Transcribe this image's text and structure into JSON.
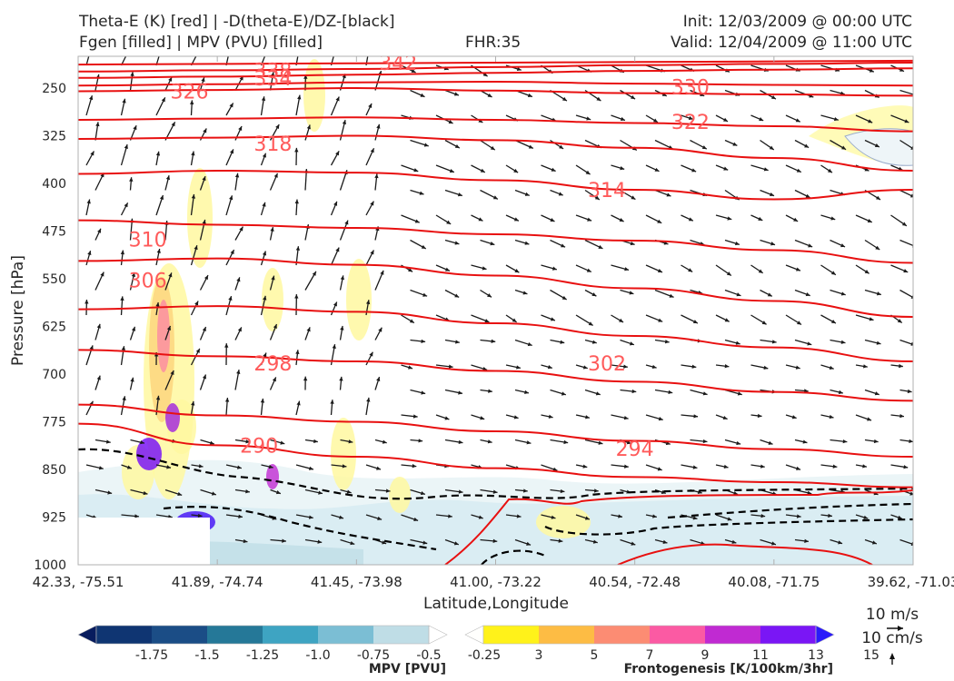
{
  "header": {
    "title_left_1": "Theta-E (K) [red] | -D(theta-E)/DZ-[black]",
    "title_left_2": "Fgen [filled] | MPV (PVU) [filled]",
    "fhr": "FHR:35",
    "init": "Init: 12/03/2009 @ 00:00 UTC",
    "valid": "Valid: 12/04/2009 @ 11:00 UTC"
  },
  "chart_data": {
    "type": "cross-section",
    "ylabel": "Pressure [hPa]",
    "xlabel": "Latitude,Longitude",
    "y_ticks": [
      "250",
      "325",
      "400",
      "475",
      "550",
      "625",
      "700",
      "775",
      "850",
      "925",
      "1000"
    ],
    "x_ticks": [
      "42.33, -75.51",
      "41.89, -74.74",
      "41.45, -73.98",
      "41.00, -73.22",
      "40.54, -72.48",
      "40.08, -71.75",
      "39.62, -71.03"
    ],
    "ylim": [
      1000,
      200
    ],
    "theta_e_contours": [
      {
        "label": "338",
        "p": [
          224,
          222,
          220,
          217,
          214,
          212,
          210
        ]
      },
      {
        "label": "334",
        "p": [
          234,
          232,
          229,
          226,
          223,
          221,
          219
        ]
      },
      {
        "label": "342",
        "p": [
          213,
          212,
          211,
          210,
          209,
          208,
          207
        ]
      },
      {
        "label": "330",
        "p": [
          246,
          244,
          241,
          240,
          243,
          245,
          246
        ]
      },
      {
        "label": "326",
        "p": [
          255,
          253,
          250,
          254,
          258,
          260,
          262
        ]
      },
      {
        "label": "322",
        "p": [
          300,
          298,
          296,
          300,
          305,
          310,
          318
        ]
      },
      {
        "label": "318",
        "p": [
          330,
          328,
          325,
          332,
          344,
          360,
          380
        ]
      },
      {
        "label": "314",
        "p": [
          385,
          380,
          383,
          395,
          410,
          425,
          410
        ]
      },
      {
        "label": "310",
        "p": [
          458,
          465,
          470,
          480,
          490,
          505,
          525
        ]
      },
      {
        "label": "306",
        "p": [
          522,
          518,
          528,
          545,
          565,
          585,
          610
        ]
      },
      {
        "label": "302",
        "p": [
          598,
          593,
          602,
          620,
          640,
          658,
          680
        ]
      },
      {
        "label": "298",
        "p": [
          662,
          672,
          680,
          695,
          712,
          728,
          742
        ]
      },
      {
        "label": "294",
        "p": [
          748,
          765,
          775,
          790,
          805,
          818,
          830
        ]
      },
      {
        "label": "290",
        "p": [
          778,
          812,
          830,
          848,
          862,
          870,
          878
        ]
      }
    ],
    "contour_label_positions": [
      {
        "label": "338",
        "lat_idx": 1.4,
        "p": 222
      },
      {
        "label": "334",
        "lat_idx": 1.4,
        "p": 234
      },
      {
        "label": "342",
        "lat_idx": 2.3,
        "p": 210
      },
      {
        "label": "326",
        "lat_idx": 0.8,
        "p": 255
      },
      {
        "label": "330",
        "lat_idx": 4.4,
        "p": 248
      },
      {
        "label": "322",
        "lat_idx": 4.4,
        "p": 303
      },
      {
        "label": "318",
        "lat_idx": 1.4,
        "p": 337
      },
      {
        "label": "314",
        "lat_idx": 3.8,
        "p": 410
      },
      {
        "label": "310",
        "lat_idx": 0.5,
        "p": 488
      },
      {
        "label": "306",
        "lat_idx": 0.5,
        "p": 552
      },
      {
        "label": "302",
        "lat_idx": 3.8,
        "p": 683
      },
      {
        "label": "298",
        "lat_idx": 1.4,
        "p": 683
      },
      {
        "label": "294",
        "lat_idx": 4.0,
        "p": 817
      },
      {
        "label": "290",
        "lat_idx": 1.3,
        "p": 812
      }
    ],
    "fgen_colorbar": {
      "label": "Frontogenesis [K/100km/3hr]",
      "ticks": [
        "3",
        "5",
        "7",
        "9",
        "11",
        "13",
        "15"
      ],
      "colors": [
        "#fffffd",
        "#fff21a",
        "#fdbc44",
        "#fc8c73",
        "#fb5aa3",
        "#c02ad2",
        "#7a16f5",
        "#2a1afa"
      ]
    },
    "mpv_colorbar": {
      "label": "MPV [PVU]",
      "ticks": [
        "-1.75",
        "-1.5",
        "-1.25",
        "-1.0",
        "-0.75",
        "-0.5",
        "-0.25"
      ],
      "colors": [
        "#081c5e",
        "#0f3572",
        "#1b4d86",
        "#257898",
        "#3ea4c2",
        "#7bbed4",
        "#bfdde6",
        "#ffffff"
      ]
    },
    "wind_scale": {
      "u": "10 m/s",
      "w": "10 cm/s"
    }
  },
  "colors": {
    "theta_e": "#e81010",
    "dthetae": "#000000",
    "label_red": "#ff5a5a",
    "axis": "#b0b0b0"
  }
}
